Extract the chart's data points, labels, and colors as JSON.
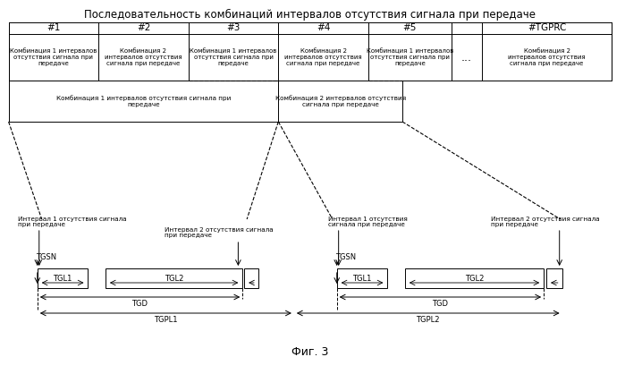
{
  "title": "Последовательность комбинаций интервалов отсутствия сигнала при передаче",
  "fig_label": "Фиг. 3",
  "col_headers": [
    "#1",
    "#2",
    "#3",
    "#4",
    "#5",
    "#TGPRC"
  ],
  "row1_texts": [
    "Комбинация 1 интервалов\nотсутствия сигнала при\nпередаче",
    "Комбинация 2\nинтервалов отсутствия\nсигнала при передаче",
    "Комбинация 1 интервалов\nотсутствия сигнала при\nпередаче",
    "Комбинация 2\nинтервалов отсутствия\nсигнала при передаче",
    "Комбинация 1 интервалов\nотсутствия сигнала при\nпередаче",
    "...",
    "Комбинация 2\nинтервалов отсутствия\nсигнала при передаче"
  ],
  "row2_text1": "Комбинация 1 интервалов отсутствия сигнала при\nпередаче",
  "row2_text2": "Комбинация 2 интервалов отсутствия\nсигнала при передаче",
  "gap_label1": "Интервал 1 отсутствия сигнала\nпри передаче",
  "gap_label2": "Интервал 2 отсутствия сигнала\nпри передаче",
  "gap_label3": "Интервал 1 отсутствия\nсигнала при передаче",
  "gap_label4": "Интервал 2 отсутствия сигнала\nпри передаче",
  "tgsn_label": "TGSN",
  "background": "#ffffff",
  "text_color": "#000000",
  "font_size_title": 8.5,
  "font_size_header": 7.5,
  "font_size_box": 5.5,
  "font_size_timing": 6,
  "font_size_fig": 9
}
